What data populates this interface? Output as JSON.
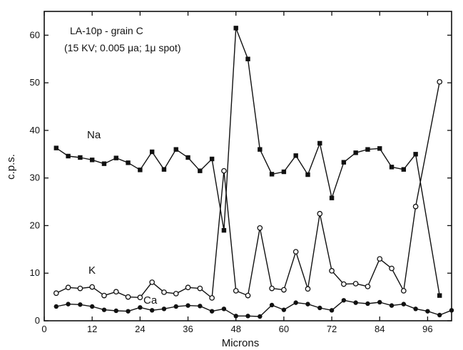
{
  "chart_data": {
    "type": "line",
    "annotation_line1": "LA-10p - grain C",
    "annotation_line2": "(15 KV; 0.005 μa; 1μ spot)",
    "xlabel": "Microns",
    "ylabel": "c.p.s.",
    "xlim": [
      0,
      102
    ],
    "ylim": [
      0,
      65
    ],
    "xticks": [
      0,
      12,
      24,
      36,
      48,
      60,
      72,
      84,
      96
    ],
    "yticks": [
      0,
      10,
      20,
      30,
      40,
      50,
      60
    ],
    "grid": false,
    "legend": "none (series labelled directly on chart)",
    "series": [
      {
        "name": "Na",
        "marker": "square-filled",
        "x": [
          3,
          6,
          9,
          12,
          15,
          18,
          21,
          24,
          27,
          30,
          33,
          36,
          39,
          42,
          45,
          48,
          51,
          54,
          57,
          60,
          63,
          66,
          69,
          72,
          75,
          78,
          81,
          84,
          87,
          90,
          93,
          99
        ],
        "y": [
          36.3,
          34.6,
          34.3,
          33.8,
          33.0,
          34.2,
          33.2,
          31.7,
          35.5,
          31.8,
          36.0,
          34.3,
          31.5,
          34.0,
          19.0,
          61.5,
          55.0,
          36.0,
          30.8,
          31.3,
          34.7,
          30.7,
          37.3,
          25.8,
          33.3,
          35.3,
          36.0,
          36.2,
          32.3,
          31.8,
          35.0,
          5.3
        ]
      },
      {
        "name": "K",
        "marker": "circle-open",
        "x": [
          3,
          6,
          9,
          12,
          15,
          18,
          21,
          24,
          27,
          30,
          33,
          36,
          39,
          42,
          45,
          48,
          51,
          54,
          57,
          60,
          63,
          66,
          69,
          72,
          75,
          78,
          81,
          84,
          87,
          90,
          93,
          99
        ],
        "y": [
          5.8,
          7.0,
          6.8,
          7.1,
          5.3,
          6.1,
          5.0,
          4.9,
          8.1,
          6.0,
          5.7,
          7.0,
          6.8,
          4.8,
          31.5,
          6.3,
          5.3,
          19.5,
          6.8,
          6.5,
          14.5,
          6.7,
          22.5,
          10.5,
          7.7,
          7.8,
          7.2,
          13.0,
          11.0,
          6.3,
          24.0,
          50.2
        ]
      },
      {
        "name": "Ca",
        "marker": "circle-filled",
        "x": [
          3,
          6,
          9,
          12,
          15,
          18,
          21,
          24,
          27,
          30,
          33,
          36,
          39,
          42,
          45,
          48,
          51,
          54,
          57,
          60,
          63,
          66,
          69,
          72,
          75,
          78,
          81,
          84,
          87,
          90,
          93,
          96,
          99,
          102
        ],
        "y": [
          3.0,
          3.5,
          3.4,
          3.0,
          2.3,
          2.1,
          2.0,
          2.8,
          2.2,
          2.5,
          3.0,
          3.2,
          3.1,
          2.0,
          2.5,
          1.0,
          1.0,
          0.9,
          3.3,
          2.3,
          3.8,
          3.5,
          2.7,
          2.2,
          4.3,
          3.8,
          3.6,
          3.9,
          3.2,
          3.5,
          2.5,
          2.0,
          1.2,
          2.2
        ]
      }
    ]
  }
}
